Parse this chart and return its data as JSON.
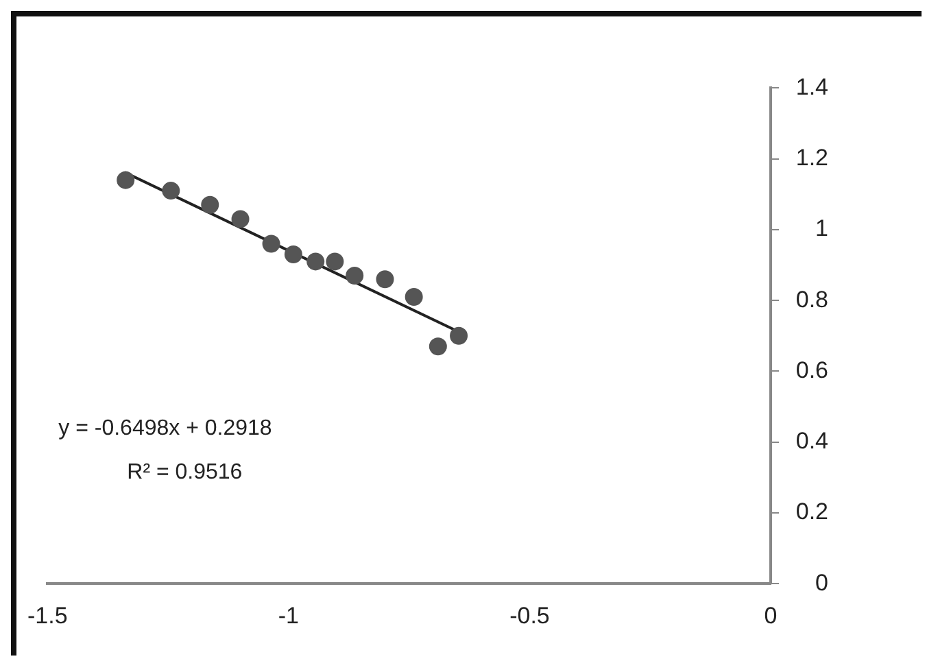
{
  "chart_data": {
    "type": "scatter",
    "grid": false,
    "legend": false,
    "xlim": [
      -1.5,
      0
    ],
    "xticks": [
      -1.5,
      -1,
      -0.5,
      0
    ],
    "ylim": [
      0,
      1.4
    ],
    "yticks": [
      0,
      0.2,
      0.4,
      0.6,
      0.8,
      1,
      1.2,
      1.4
    ],
    "series": [
      {
        "marker": "circle",
        "color": "#555555",
        "x": [
          -1.338,
          -1.244,
          -1.163,
          -1.1,
          -1.036,
          -0.99,
          -0.944,
          -0.904,
          -0.863,
          -0.8,
          -0.74,
          -0.69,
          -0.647
        ],
        "values": [
          1.14,
          1.11,
          1.07,
          1.03,
          0.96,
          0.93,
          0.91,
          0.91,
          0.87,
          0.86,
          0.81,
          0.67,
          0.7
        ]
      },
      {
        "type": "line",
        "marker": "none",
        "color": "#222222",
        "x": [
          -1.34,
          -0.64
        ],
        "values": [
          1.162,
          0.707
        ]
      }
    ],
    "annotations": [
      "y = -0.6498x + 0.2918",
      "R² = 0.9516"
    ]
  }
}
